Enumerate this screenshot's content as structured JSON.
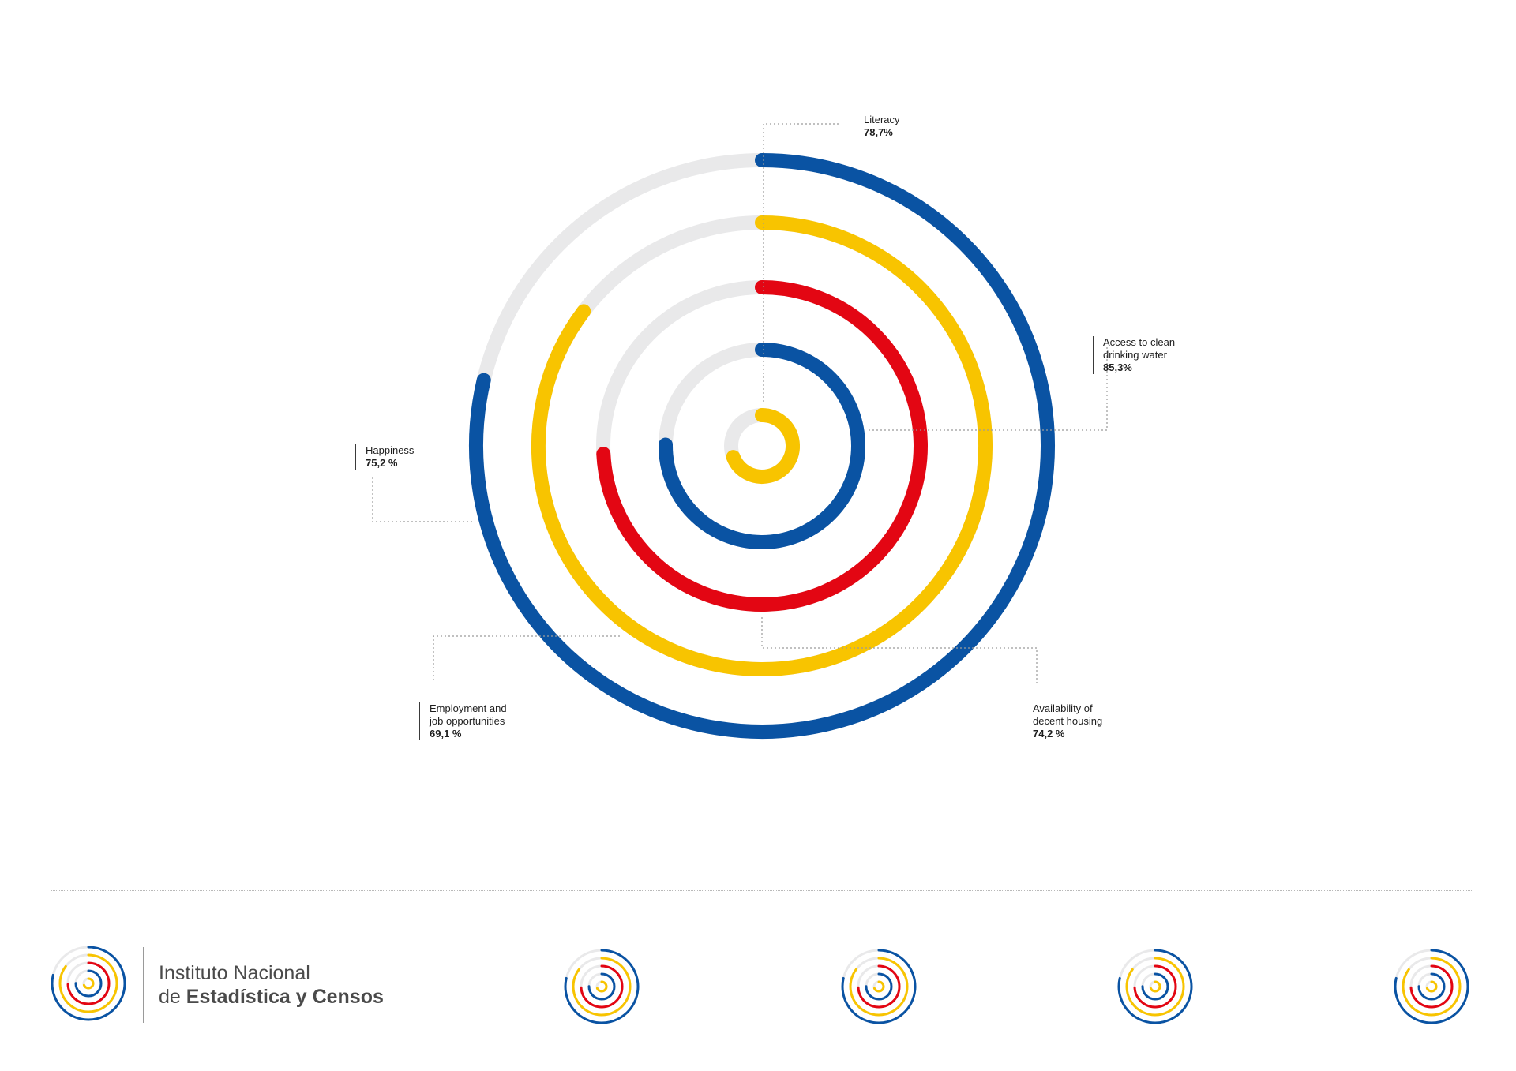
{
  "chart_data": {
    "type": "radial-bar",
    "series": [
      {
        "name": "Literacy",
        "value": 78.7,
        "color": "#0a53a3"
      },
      {
        "name": "Access to clean\ndrinking water",
        "value": 85.3,
        "color": "#f8c400"
      },
      {
        "name": "Availability of\ndecent housing",
        "value": 74.2,
        "color": "#e30613"
      },
      {
        "name": "Happiness",
        "value": 75.2,
        "color": "#0a53a3"
      },
      {
        "name": "Employment and\njob opportunities",
        "value": 69.1,
        "color": "#f8c400"
      }
    ],
    "range": [
      0,
      100
    ],
    "track_color": "#e9e9ea"
  },
  "labels": {
    "literacy": {
      "label": "Literacy",
      "value": "78,7%"
    },
    "water": {
      "label": "Access to clean\ndrinking water",
      "value": "85,3%"
    },
    "happiness": {
      "label": "Happiness",
      "value": "75,2 %"
    },
    "employment": {
      "label": "Employment and\njob opportunities",
      "value": "69,1 %"
    },
    "housing": {
      "label": "Availability of\ndecent housing",
      "value": "74,2 %"
    }
  },
  "brand": {
    "line1": "Instituto Nacional",
    "line2_prefix": "de ",
    "line2": "Estadística y Censos"
  }
}
